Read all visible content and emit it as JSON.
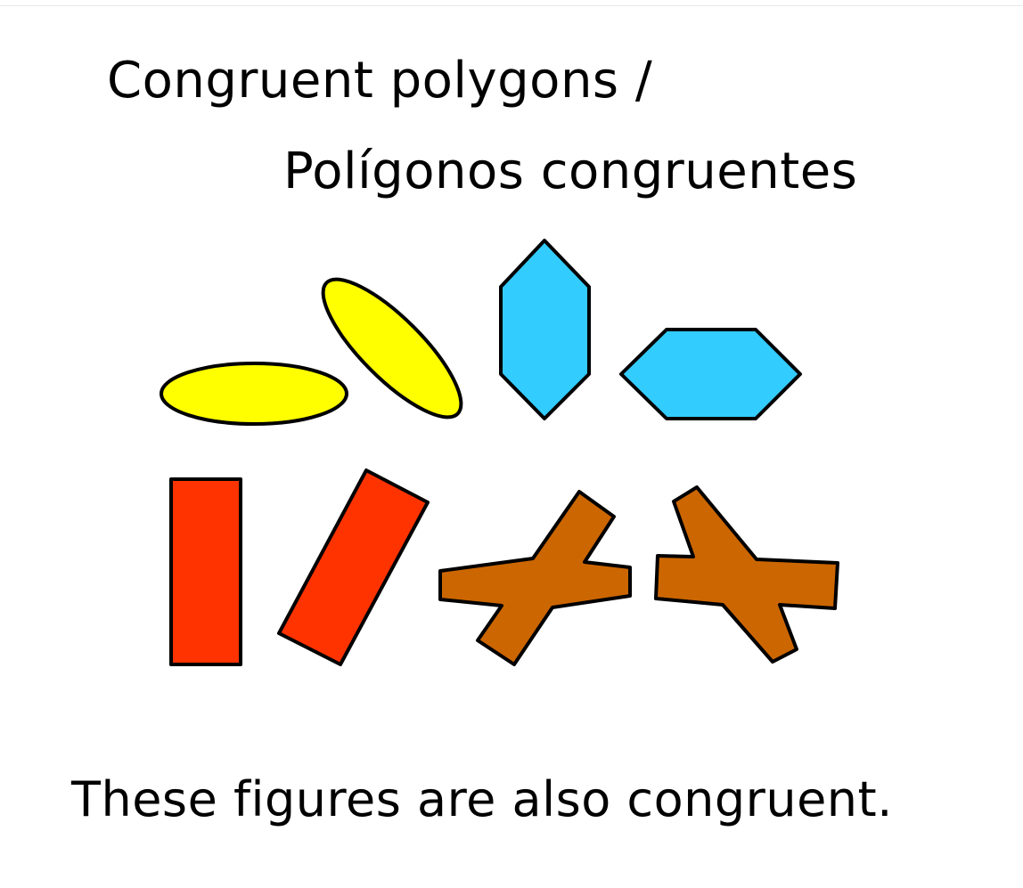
{
  "title": {
    "line1": "Congruent polygons /",
    "line2": "Polígonos congruentes"
  },
  "caption": "These figures are also congruent.",
  "colors": {
    "ellipse": "#ffff00",
    "hexagon": "#33ccff",
    "rectangle": "#ff3300",
    "cross": "#cc6600",
    "outline": "#000000"
  }
}
